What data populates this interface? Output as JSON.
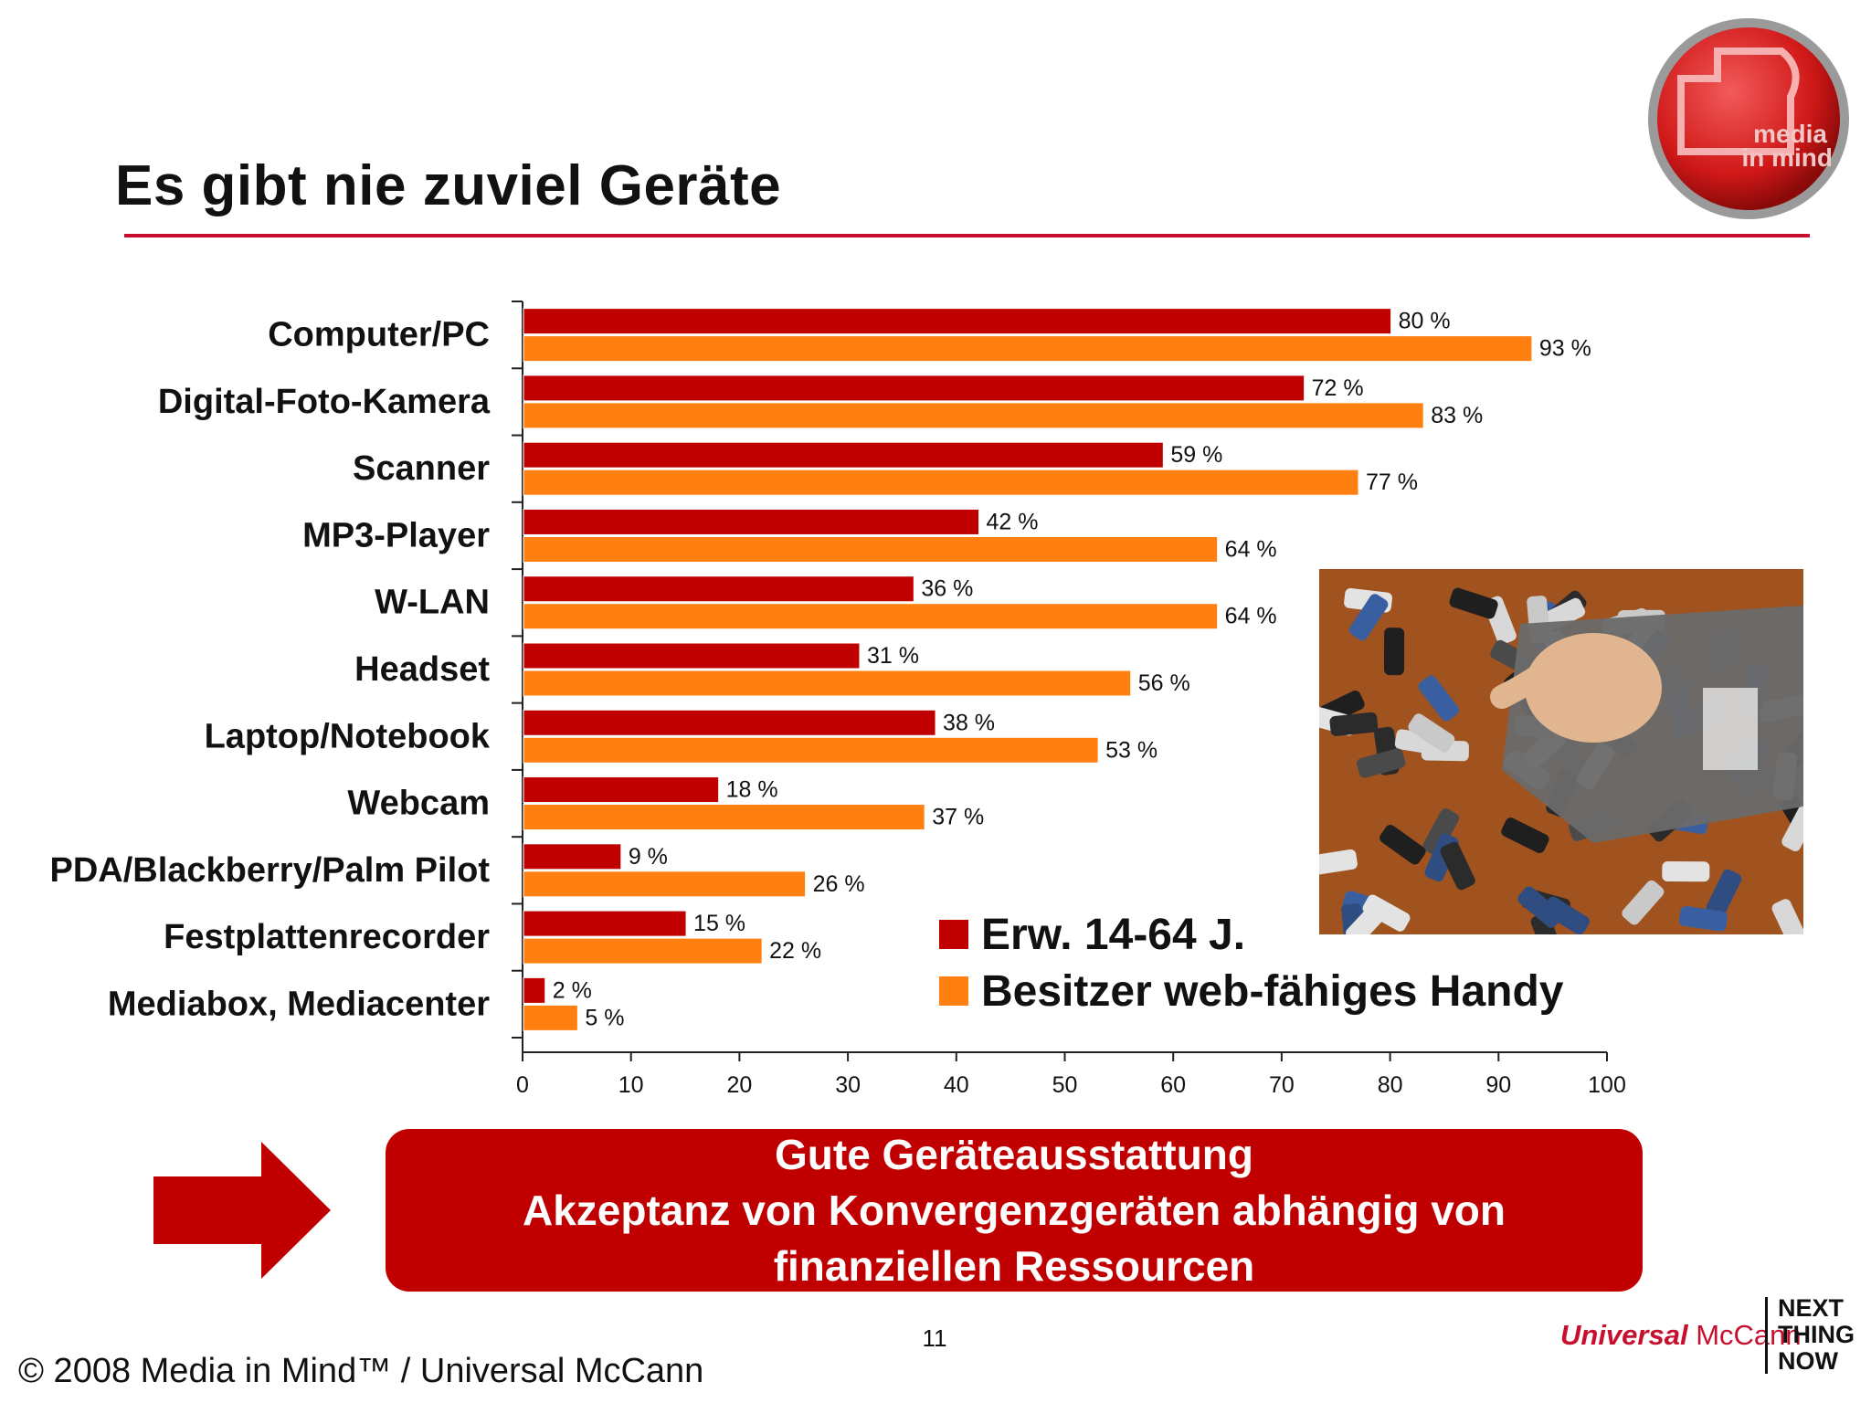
{
  "slide": {
    "title": "Es gibt nie zuviel Geräte",
    "logo_text": [
      "media",
      "in mind",
      "™"
    ],
    "page_number": "11",
    "copyright": "© 2008 Media in Mind™ / Universal McCann",
    "brand": {
      "universal": "Universal",
      "mccann": "McCann",
      "tagline": [
        "NEXT",
        "THING",
        "NOW"
      ]
    },
    "callout_lines": [
      "Gute Geräteausstattung",
      "Akzeptanz von Konvergenzgeräten abhängig von",
      "finanziellen Ressourcen"
    ],
    "colors": {
      "accent_red": "#c00000",
      "series_red": "#c00000",
      "series_orange": "#ff7f10",
      "rule_red": "#c8102e"
    },
    "icons": [
      "arrow-right-icon",
      "media-in-mind-logo",
      "phones-photo"
    ]
  },
  "chart_data": {
    "type": "bar",
    "orientation": "horizontal",
    "categories": [
      "Computer/PC",
      "Digital-Foto-Kamera",
      "Scanner",
      "MP3-Player",
      "W-LAN",
      "Headset",
      "Laptop/Notebook",
      "Webcam",
      "PDA/Blackberry/Palm Pilot",
      "Festplattenrecorder",
      "Mediabox, Mediacenter"
    ],
    "series": [
      {
        "name": "Erw. 14-64 J.",
        "color": "#c00000",
        "values": [
          80,
          72,
          59,
          42,
          36,
          31,
          38,
          18,
          9,
          15,
          2
        ],
        "labels": [
          "80 %",
          "72 %",
          "59 %",
          "42 %",
          "36 %",
          "31 %",
          "38 %",
          "18 %",
          "9 %",
          "15 %",
          "2 %"
        ]
      },
      {
        "name": "Besitzer web-fähiges Handy",
        "color": "#ff7f10",
        "values": [
          93,
          83,
          77,
          64,
          64,
          56,
          53,
          37,
          26,
          22,
          5
        ],
        "labels": [
          "93 %",
          "83 %",
          "77 %",
          "64 %",
          "64 %",
          "56 %",
          "53 %",
          "37 %",
          "26 %",
          "22 %",
          "5 %"
        ]
      }
    ],
    "xlim": [
      0,
      100
    ],
    "xticks": [
      "0",
      "10",
      "20",
      "30",
      "40",
      "50",
      "60",
      "70",
      "80",
      "90",
      "100"
    ],
    "grid": false,
    "legend_position": "bottom-right"
  }
}
